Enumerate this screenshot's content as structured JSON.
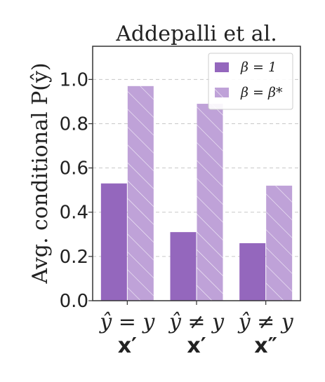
{
  "chart_data": {
    "type": "bar",
    "title": "Addepalli et al.",
    "ylabel": "Avg. conditional P(ŷ)",
    "xlabel": "",
    "ylim": [
      0,
      1.15
    ],
    "yticks": [
      "0.0",
      "0.2",
      "0.4",
      "0.6",
      "0.8",
      "1.0"
    ],
    "ytick_values": [
      0,
      0.2,
      0.4,
      0.6,
      0.8,
      1.0
    ],
    "grid": true,
    "legend_position": "top-right",
    "categories": [
      {
        "line1": "ŷ = y",
        "line2": "x′"
      },
      {
        "line1": "ŷ ≠ y",
        "line2": "x′"
      },
      {
        "line1": "ŷ ≠ y",
        "line2": "x″"
      }
    ],
    "series": [
      {
        "name": "β = 1",
        "values": [
          0.53,
          0.31,
          0.26
        ],
        "color": "#9467bd",
        "hatch": false
      },
      {
        "name": "β = β*",
        "values": [
          0.97,
          0.89,
          0.52
        ],
        "color": "#bfa2d8",
        "hatch": true
      }
    ]
  }
}
